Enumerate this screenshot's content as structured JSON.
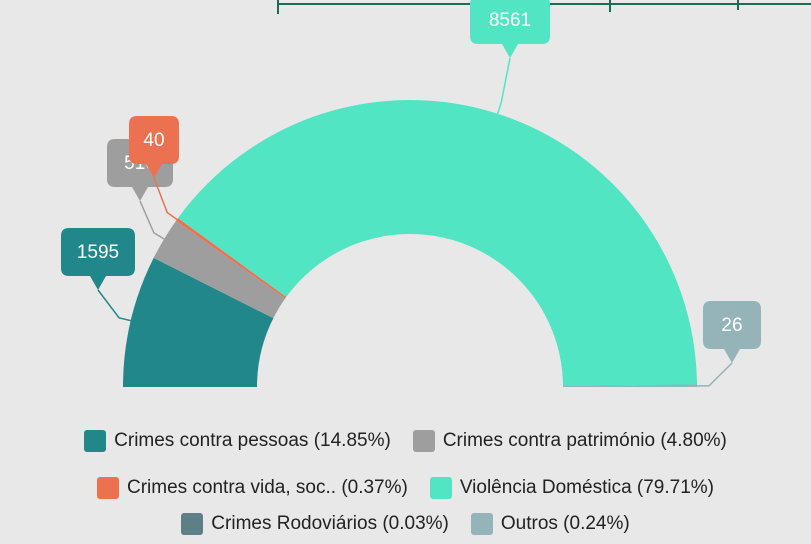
{
  "chart_data": {
    "type": "semi-donut",
    "series": [
      {
        "name": "Crimes contra pessoas (14.85%)",
        "color": "#21878a",
        "value": 1595
      },
      {
        "name": "Crimes contra património (4.80%)",
        "color": "#9e9e9e",
        "value": 516
      },
      {
        "name": "Crimes contra vida, soc.. (0.37%)",
        "color": "#ec7151",
        "value": 40
      },
      {
        "name": "Violência Doméstica (79.71%)",
        "color": "#52e5c4",
        "value": 8561
      },
      {
        "name": "Crimes Rodoviários (0.03%)",
        "color": "#5d7f86",
        "value": 3
      },
      {
        "name": "Outros (0.24%)",
        "color": "#94b4ba",
        "value": 26
      }
    ]
  }
}
